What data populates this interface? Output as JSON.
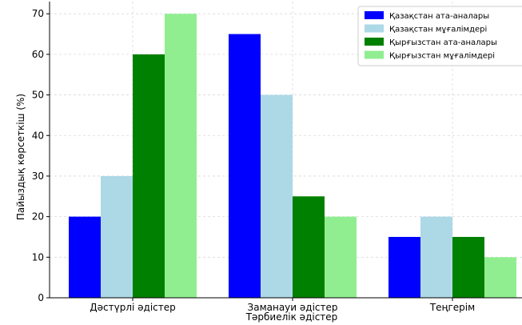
{
  "chart_data": {
    "type": "bar",
    "title": "",
    "xlabel": "Тәрбиелік әдістер",
    "ylabel": "Пайыздық көрсеткіш (%)",
    "categories": [
      "Дәстүрлі әдістер",
      "Заманауи әдістер",
      "Теңгерім"
    ],
    "series": [
      {
        "name": "Қазақстан ата-аналары",
        "values": [
          20,
          65,
          15
        ],
        "color": "#0000ff"
      },
      {
        "name": "Қазақстан мұғалімдері",
        "values": [
          30,
          50,
          20
        ],
        "color": "#add8e6"
      },
      {
        "name": "Қырғызстан ата-аналары",
        "values": [
          60,
          25,
          15
        ],
        "color": "#008000"
      },
      {
        "name": "Қырғызстан мұғалімдері",
        "values": [
          70,
          20,
          10
        ],
        "color": "#90ee90"
      }
    ],
    "ylim": [
      0,
      73
    ],
    "yticks": [
      0,
      10,
      20,
      30,
      40,
      50,
      60,
      70
    ],
    "grid": true,
    "legend_position": "top-right"
  }
}
